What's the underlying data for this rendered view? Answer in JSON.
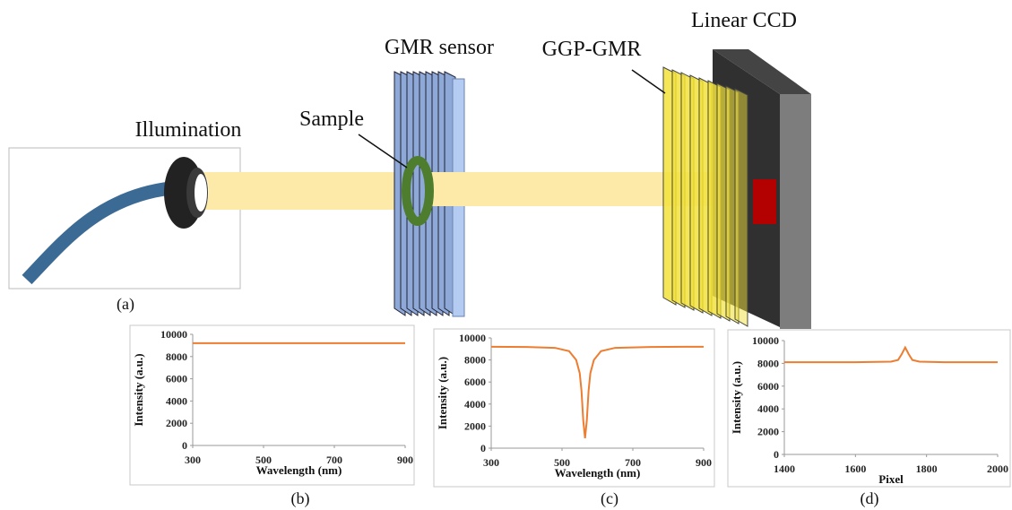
{
  "diagram": {
    "illumination": "Illumination",
    "sample": "Sample",
    "gmr_sensor": "GMR sensor",
    "ggp_gmr": "GGP-GMR",
    "linear_ccd": "Linear CCD",
    "panel_labels": [
      "(a)",
      "(b)",
      "(c)",
      "(d)"
    ]
  },
  "chart_data": [
    {
      "type": "line",
      "xlabel": "Wavelength (nm)",
      "ylabel": "Intensity (a.u.)",
      "color": "#ed7d31",
      "x": [
        300,
        500,
        700,
        900
      ],
      "values": [
        9200,
        9200,
        9200,
        9200
      ],
      "xlim": [
        300,
        900
      ],
      "xticks": [
        300,
        500,
        700,
        900
      ],
      "ylim": [
        0,
        10000
      ],
      "yticks": [
        0,
        2000,
        4000,
        6000,
        8000,
        10000
      ]
    },
    {
      "type": "line",
      "xlabel": "Wavelength (nm)",
      "ylabel": "Intensity (a.u.)",
      "color": "#ed7d31",
      "x": [
        300,
        400,
        480,
        520,
        540,
        550,
        555,
        560,
        565,
        570,
        575,
        580,
        590,
        610,
        650,
        750,
        900
      ],
      "values": [
        9200,
        9180,
        9100,
        8800,
        8000,
        6800,
        5200,
        2500,
        900,
        2500,
        5200,
        6800,
        8000,
        8800,
        9100,
        9180,
        9200
      ],
      "xlim": [
        300,
        900
      ],
      "xticks": [
        300,
        500,
        700,
        900
      ],
      "ylim": [
        0,
        10000
      ],
      "yticks": [
        0,
        2000,
        4000,
        6000,
        8000,
        10000
      ]
    },
    {
      "type": "line",
      "xlabel": "Pixel",
      "ylabel": "Intensity (a.u.)",
      "color": "#ed7d31",
      "x": [
        1400,
        1600,
        1700,
        1720,
        1730,
        1740,
        1750,
        1760,
        1780,
        1850,
        2000
      ],
      "values": [
        8100,
        8100,
        8150,
        8300,
        8800,
        9400,
        8800,
        8300,
        8150,
        8100,
        8100
      ],
      "xlim": [
        1400,
        2000
      ],
      "xticks": [
        1400,
        1600,
        1800,
        2000
      ],
      "ylim": [
        0,
        10000
      ],
      "yticks": [
        0,
        2000,
        4000,
        6000,
        8000,
        10000
      ]
    }
  ]
}
